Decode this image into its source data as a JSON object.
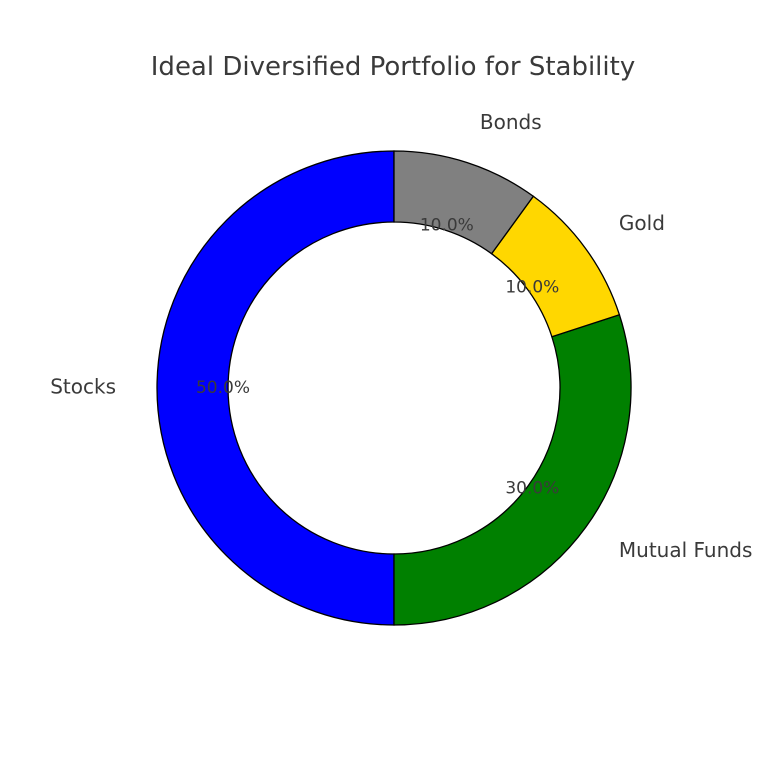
{
  "chart_data": {
    "type": "pie",
    "variant": "donut",
    "title": "Ideal Diversified Portfolio for Stability",
    "start_angle_deg": 90,
    "direction": "counterclockwise",
    "slices": [
      {
        "label": "Stocks",
        "value": 50,
        "pct_label": "50.0%",
        "color": "#0000FF"
      },
      {
        "label": "Mutual Funds",
        "value": 30,
        "pct_label": "30.0%",
        "color": "#008000"
      },
      {
        "label": "Gold",
        "value": 10,
        "pct_label": "10.0%",
        "color": "#FFD700"
      },
      {
        "label": "Bonds",
        "value": 10,
        "pct_label": "10.0%",
        "color": "#808080"
      }
    ]
  }
}
